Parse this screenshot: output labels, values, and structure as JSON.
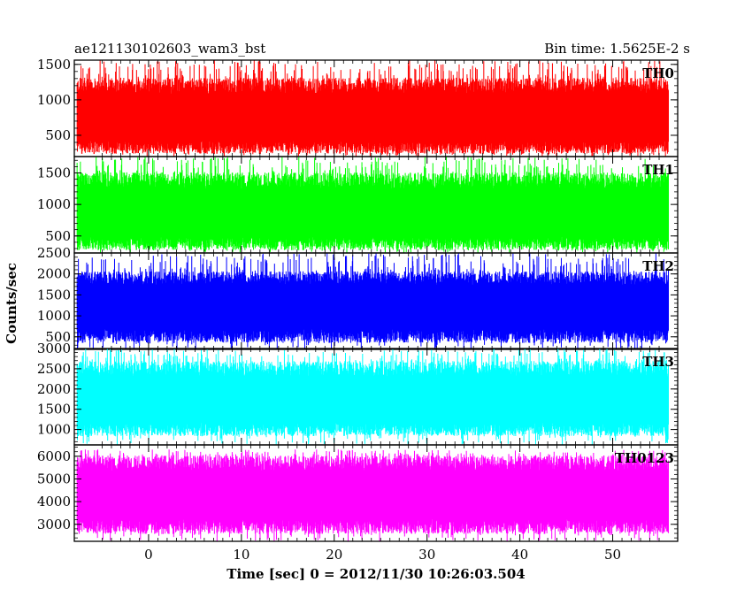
{
  "header": {
    "title": "ae121130102603_wam3_bst",
    "bin_time": "Bin time: 1.5625E-2 s"
  },
  "chart_data": {
    "type": "line",
    "title": "ae121130102603_wam3_bst",
    "xlabel": "Time [sec] 0 = 2012/11/30 10:26:03.504",
    "ylabel": "Counts/sec",
    "xlim": [
      -8,
      57
    ],
    "x_ticks": [
      0,
      10,
      20,
      30,
      40,
      50
    ],
    "x_range_data": [
      -7.7,
      56.0
    ],
    "grid": false,
    "panels": [
      {
        "label": "TH0",
        "color": "#ff0000",
        "ylim": [
          200,
          1560
        ],
        "y_ticks": [
          500,
          1000,
          1500
        ],
        "typical_range": [
          330,
          1200
        ],
        "peak_range": [
          1300,
          1560
        ],
        "mean": 700
      },
      {
        "label": "TH1",
        "color": "#00ff00",
        "ylim": [
          230,
          1760
        ],
        "y_ticks": [
          500,
          1000,
          1500
        ],
        "typical_range": [
          380,
          1380
        ],
        "peak_range": [
          1450,
          1760
        ],
        "mean": 800
      },
      {
        "label": "TH2",
        "color": "#0000ff",
        "ylim": [
          200,
          2500
        ],
        "y_ticks": [
          500,
          1000,
          1500,
          2000,
          2500
        ],
        "typical_range": [
          520,
          1900
        ],
        "peak_range": [
          2050,
          2500
        ],
        "mean": 1180
      },
      {
        "label": "TH3",
        "color": "#00ffff",
        "ylim": [
          620,
          3000
        ],
        "y_ticks": [
          1000,
          1500,
          2000,
          2500,
          3000
        ],
        "typical_range": [
          1000,
          2500
        ],
        "peak_range": [
          2650,
          3000
        ],
        "mean": 1650
      },
      {
        "label": "TH0123",
        "color": "#ff00ff",
        "ylim": [
          2250,
          6500
        ],
        "y_ticks": [
          3000,
          4000,
          5000,
          6000
        ],
        "typical_range": [
          2900,
          5700
        ],
        "peak_range": [
          5900,
          6300
        ],
        "mean": 4200
      }
    ]
  }
}
